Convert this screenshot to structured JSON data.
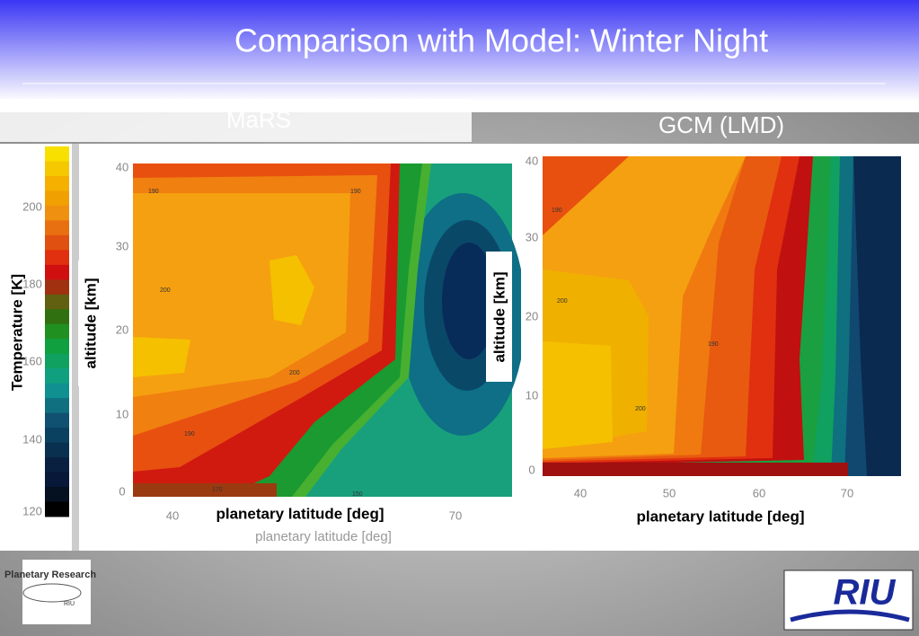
{
  "title": "Comparison with Model: Winter Night",
  "colorbar": {
    "label": "Temperature [K]",
    "ticks": [
      "200",
      "180",
      "160",
      "140",
      "120"
    ]
  },
  "panels": [
    {
      "title": "MaRS",
      "y_label": "altitude  [km]",
      "x_label": "planetary latitude  [deg]",
      "x_label_original": "planetary latitude [deg]",
      "yticks": [
        "40",
        "30",
        "20",
        "10",
        "0"
      ],
      "xticks": [
        "40",
        "70"
      ],
      "contour_labels": [
        "190",
        "190",
        "200",
        "200",
        "190",
        "170",
        "150"
      ]
    },
    {
      "title": "GCM (LMD)",
      "y_label": "altitude  [km]",
      "x_label": "planetary latitude  [deg]",
      "yticks": [
        "40",
        "30",
        "20",
        "10",
        "0"
      ],
      "xticks": [
        "40",
        "50",
        "60",
        "70"
      ],
      "contour_labels": [
        "190",
        "200",
        "200",
        "190"
      ]
    }
  ],
  "logos": {
    "left": "Planetary Research",
    "left_small": "RIU",
    "right": "RIU"
  }
}
